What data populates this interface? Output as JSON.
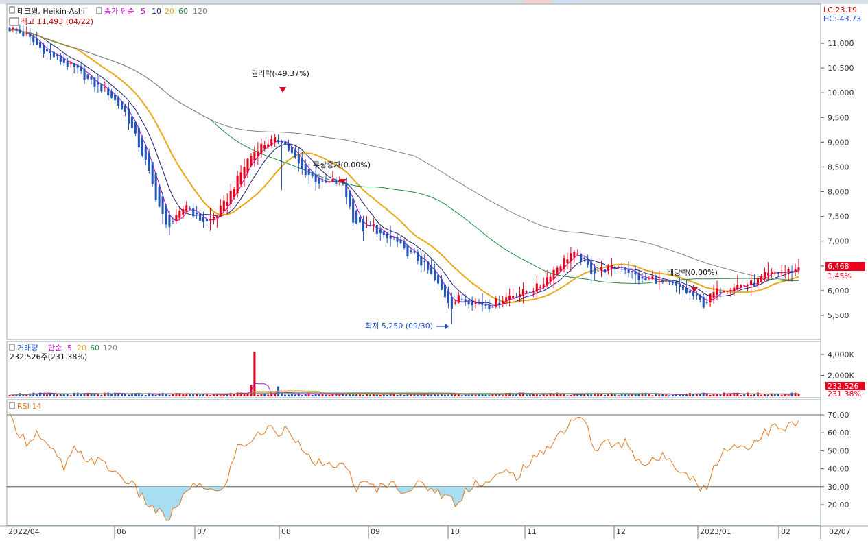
{
  "colors": {
    "up": "#e8001c",
    "down": "#2255b8",
    "ma5": "#c000c0",
    "ma10": "#1a1a70",
    "ma20": "#e6a817",
    "ma60": "#1a8a3a",
    "ma120": "#808080",
    "rsi": "#e07820",
    "rsi_fill": "#a8def2",
    "label_red": "#d00000",
    "label_blue": "#1a4ed0"
  },
  "price_panel": {
    "legend": {
      "title": "테크윙, Heikin-Ashi",
      "ma_label": "종가 단순",
      "periods": [
        "5",
        "10",
        "20",
        "60",
        "120"
      ]
    },
    "high_label": "최고 11,493 (04/22)",
    "low_label": "최저 5,250 (09/30)",
    "lc_label": "LC:23.19",
    "hc_label": "HC:-43.73",
    "last_price": "6,468",
    "last_change": "1.45%",
    "events": [
      {
        "text": "권리락(-49.37%)",
        "date": "08/01"
      },
      {
        "text": "무상증자(0.00%)",
        "date": "08/25"
      },
      {
        "text": "배당락(0.00%)",
        "date": "12/28"
      }
    ]
  },
  "volume_panel": {
    "legend": {
      "title": "거래량",
      "ma_label": "단순",
      "periods": [
        "5",
        "20",
        "60",
        "120"
      ]
    },
    "current_label": "232,526주(231.38%)",
    "last_value": "232,526",
    "last_pct": "231.38%"
  },
  "rsi_panel": {
    "title": "RSI 14"
  },
  "x_axis_labels": [
    "2022/04",
    "06",
    "07",
    "08",
    "09",
    "10",
    "11",
    "12",
    "2023/01",
    "02",
    "02/07"
  ],
  "chart_data": [
    {
      "type": "candlestick",
      "title": "테크윙, Heikin-Ashi",
      "ylim": [
        5000,
        11500
      ],
      "y_ticks": [
        "5,500",
        "6,000",
        "6,500",
        "7,000",
        "7,500",
        "8,000",
        "8,500",
        "9,000",
        "9,500",
        "10,000",
        "10,500",
        "11,000"
      ],
      "anchor_closes": [
        [
          0,
          11300
        ],
        [
          5,
          11150
        ],
        [
          9,
          10900
        ],
        [
          15,
          10650
        ],
        [
          20,
          10450
        ],
        [
          24,
          10200
        ],
        [
          29,
          10000
        ],
        [
          34,
          9600
        ],
        [
          37,
          9100
        ],
        [
          40,
          8600
        ],
        [
          43,
          7900
        ],
        [
          46,
          7300
        ],
        [
          49,
          7450
        ],
        [
          52,
          7750
        ],
        [
          55,
          7480
        ],
        [
          58,
          7380
        ],
        [
          61,
          7550
        ],
        [
          64,
          7850
        ],
        [
          67,
          8250
        ],
        [
          70,
          8650
        ],
        [
          73,
          8900
        ],
        [
          76,
          9000
        ],
        [
          80,
          9050
        ],
        [
          83,
          8750
        ],
        [
          86,
          8450
        ],
        [
          89,
          8300
        ],
        [
          92,
          8150
        ],
        [
          95,
          8200
        ],
        [
          98,
          8150
        ],
        [
          101,
          7450
        ],
        [
          104,
          7250
        ],
        [
          107,
          7300
        ],
        [
          110,
          7050
        ],
        [
          113,
          7050
        ],
        [
          116,
          6800
        ],
        [
          119,
          6700
        ],
        [
          122,
          6500
        ],
        [
          125,
          6200
        ],
        [
          128,
          5900
        ],
        [
          130,
          5700
        ],
        [
          132,
          5850
        ],
        [
          135,
          5800
        ],
        [
          138,
          5750
        ],
        [
          141,
          5700
        ],
        [
          144,
          5800
        ],
        [
          147,
          5900
        ],
        [
          150,
          5950
        ],
        [
          153,
          6000
        ],
        [
          156,
          6100
        ],
        [
          159,
          6350
        ],
        [
          162,
          6550
        ],
        [
          165,
          6750
        ],
        [
          168,
          6650
        ],
        [
          171,
          6400
        ],
        [
          174,
          6420
        ],
        [
          177,
          6450
        ],
        [
          180,
          6500
        ],
        [
          183,
          6350
        ],
        [
          186,
          6200
        ],
        [
          189,
          6250
        ],
        [
          192,
          6150
        ],
        [
          195,
          6100
        ],
        [
          198,
          6000
        ],
        [
          201,
          5900
        ],
        [
          204,
          5720
        ],
        [
          207,
          5950
        ],
        [
          210,
          6050
        ],
        [
          213,
          6100
        ],
        [
          216,
          6120
        ],
        [
          219,
          6150
        ],
        [
          222,
          6300
        ],
        [
          225,
          6350
        ],
        [
          228,
          6380
        ],
        [
          231,
          6420
        ],
        [
          232,
          6468
        ]
      ],
      "ma_periods": [
        5,
        10,
        20,
        60,
        120
      ],
      "events": [
        {
          "text": "권리락(-49.37%)",
          "date": "08/01",
          "marker": "down-arrow"
        },
        {
          "text": "무상증자(0.00%)",
          "date": "08/25",
          "marker": "down-arrow"
        },
        {
          "text": "배당락(0.00%)",
          "date": "12/28",
          "marker": "down-arrow"
        }
      ],
      "annotations": [
        {
          "text": "최고 11,493 (04/22)",
          "value": 11493
        },
        {
          "text": "최저 5,250 (09/30)",
          "value": 5250
        }
      ],
      "last_value": 6468,
      "last_change_pct": 1.45
    },
    {
      "type": "bar",
      "title": "거래량",
      "y_ticks": [
        "2,000K",
        "4,000K"
      ],
      "ylim": [
        0,
        5000000
      ],
      "ma_periods": [
        5,
        20,
        60,
        120
      ],
      "spikes": [
        {
          "index": 72,
          "value": 4250000
        },
        {
          "index": 71,
          "value": 1100000
        },
        {
          "index": 79,
          "value": 950000
        }
      ],
      "baseline_volume": 180000,
      "last_value": 232526,
      "last_pct": 231.38
    },
    {
      "type": "line",
      "title": "RSI 14",
      "ylim": [
        10,
        75
      ],
      "y_ticks": [
        "20.00",
        "30.00",
        "40.00",
        "50.00",
        "60.00",
        "70.00"
      ],
      "thresholds": [
        30,
        70
      ],
      "anchor_values": [
        [
          0,
          68
        ],
        [
          3,
          60
        ],
        [
          5,
          55
        ],
        [
          8,
          60
        ],
        [
          11,
          52
        ],
        [
          14,
          47
        ],
        [
          16,
          40
        ],
        [
          19,
          50
        ],
        [
          22,
          46
        ],
        [
          25,
          45
        ],
        [
          28,
          42
        ],
        [
          31,
          38
        ],
        [
          35,
          33
        ],
        [
          38,
          26
        ],
        [
          41,
          20
        ],
        [
          44,
          15
        ],
        [
          47,
          12
        ],
        [
          50,
          22
        ],
        [
          53,
          28
        ],
        [
          56,
          32
        ],
        [
          59,
          28
        ],
        [
          62,
          26
        ],
        [
          65,
          40
        ],
        [
          67,
          52
        ],
        [
          70,
          55
        ],
        [
          73,
          58
        ],
        [
          76,
          63
        ],
        [
          79,
          60
        ],
        [
          82,
          64
        ],
        [
          84,
          57
        ],
        [
          87,
          46
        ],
        [
          90,
          44
        ],
        [
          93,
          40
        ],
        [
          96,
          43
        ],
        [
          99,
          40
        ],
        [
          102,
          30
        ],
        [
          105,
          31
        ],
        [
          108,
          29
        ],
        [
          111,
          32
        ],
        [
          114,
          30
        ],
        [
          117,
          28
        ],
        [
          120,
          31
        ],
        [
          123,
          30
        ],
        [
          126,
          27
        ],
        [
          129,
          24
        ],
        [
          132,
          20
        ],
        [
          134,
          28
        ],
        [
          137,
          33
        ],
        [
          140,
          32
        ],
        [
          143,
          35
        ],
        [
          146,
          38
        ],
        [
          149,
          36
        ],
        [
          152,
          42
        ],
        [
          155,
          46
        ],
        [
          158,
          52
        ],
        [
          161,
          58
        ],
        [
          164,
          64
        ],
        [
          167,
          70
        ],
        [
          170,
          62
        ],
        [
          172,
          50
        ],
        [
          175,
          55
        ],
        [
          178,
          52
        ],
        [
          181,
          55
        ],
        [
          184,
          47
        ],
        [
          187,
          42
        ],
        [
          190,
          45
        ],
        [
          193,
          47
        ],
        [
          196,
          42
        ],
        [
          199,
          38
        ],
        [
          202,
          32
        ],
        [
          205,
          27
        ],
        [
          207,
          42
        ],
        [
          210,
          50
        ],
        [
          213,
          53
        ],
        [
          216,
          52
        ],
        [
          219,
          55
        ],
        [
          222,
          60
        ],
        [
          225,
          63
        ],
        [
          228,
          62
        ],
        [
          231,
          65
        ],
        [
          232,
          66
        ]
      ]
    }
  ]
}
